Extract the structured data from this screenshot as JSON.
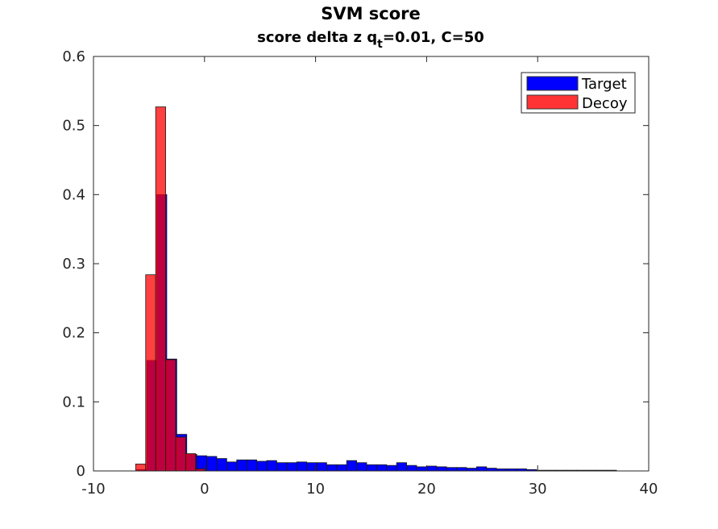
{
  "chart_data": {
    "type": "bar",
    "title": "SVM score",
    "subtitle": {
      "prefix": "score delta z q",
      "subscript": "t",
      "suffix": "=0.01, C=50"
    },
    "xlabel": "",
    "ylabel": "",
    "xlim": [
      -10,
      40
    ],
    "ylim": [
      0,
      0.6
    ],
    "xticks": [
      -10,
      0,
      10,
      20,
      30,
      40
    ],
    "yticks": [
      0,
      0.1,
      0.2,
      0.3,
      0.4,
      0.5,
      0.6
    ],
    "xtick_labels": [
      "-10",
      "0",
      "10",
      "20",
      "30",
      "40"
    ],
    "ytick_labels": [
      "0",
      "0.1",
      "0.2",
      "0.3",
      "0.4",
      "0.5",
      "0.6"
    ],
    "grid": false,
    "legend_position": "top-right",
    "series": [
      {
        "name": "Target",
        "color": "#0000ff",
        "bin_edges": [
          -6.1,
          -5.2,
          -4.3,
          -3.4,
          -2.5,
          -1.6,
          -0.7,
          0.2,
          1.1,
          2.0,
          2.9,
          3.8,
          4.7,
          5.6,
          6.5,
          7.4,
          8.3,
          9.2,
          10.1,
          11.0,
          11.9,
          12.8,
          13.7,
          14.6,
          15.5,
          16.4,
          17.3,
          18.2,
          19.1,
          20.0,
          20.9,
          21.8,
          22.7,
          23.6,
          24.5,
          25.4,
          26.3,
          27.2,
          28.1,
          29.0,
          29.9,
          30.8,
          31.7,
          32.6,
          33.5,
          34.4,
          35.3,
          36.2,
          37.1
        ],
        "values": [
          0.002,
          0.16,
          0.4,
          0.162,
          0.053,
          0.024,
          0.022,
          0.021,
          0.018,
          0.013,
          0.016,
          0.016,
          0.014,
          0.015,
          0.012,
          0.012,
          0.013,
          0.012,
          0.012,
          0.009,
          0.009,
          0.015,
          0.012,
          0.009,
          0.009,
          0.008,
          0.012,
          0.008,
          0.006,
          0.007,
          0.006,
          0.005,
          0.005,
          0.004,
          0.006,
          0.004,
          0.003,
          0.003,
          0.003,
          0.002,
          0.001,
          0.001,
          0.001,
          0.001,
          0.001,
          0.001,
          0.001,
          0.001
        ]
      },
      {
        "name": "Decoy",
        "color": "#ff0000",
        "bin_edges": [
          -6.2,
          -5.3,
          -4.4,
          -3.5,
          -2.6,
          -1.7,
          -0.8,
          0.1
        ],
        "values": [
          0.01,
          0.284,
          0.527,
          0.161,
          0.049,
          0.025,
          0.003
        ]
      }
    ]
  },
  "legend": {
    "entries": [
      {
        "label": "Target",
        "color": "#0000ff"
      },
      {
        "label": "Decoy",
        "color": "#ff3333"
      }
    ]
  }
}
